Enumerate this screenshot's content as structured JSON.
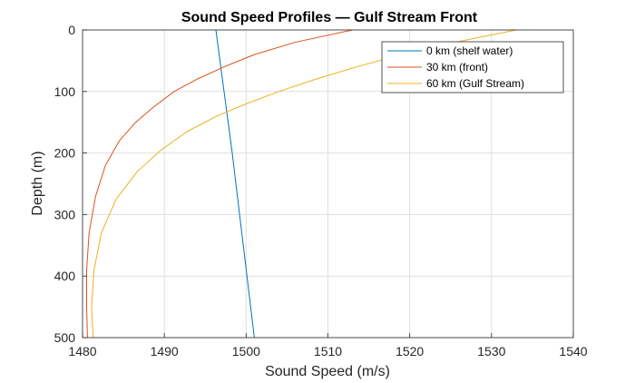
{
  "chart_data": {
    "type": "line",
    "title": "Sound Speed Profiles — Gulf Stream Front",
    "xlabel": "Sound Speed (m/s)",
    "ylabel": "Depth (m)",
    "xlim": [
      1480,
      1540
    ],
    "ylim": [
      0,
      500
    ],
    "y_reversed": true,
    "xticks": [
      1480,
      1490,
      1500,
      1510,
      1520,
      1530,
      1540
    ],
    "yticks": [
      0,
      100,
      200,
      300,
      400,
      500
    ],
    "grid": true,
    "legend_position": "top-right",
    "series": [
      {
        "name": "0 km (shelf water)",
        "color": "#0072BD",
        "x": [
          1496.3,
          1497.3,
          1498.3,
          1499.2,
          1500.1,
          1501.0
        ],
        "y": [
          0,
          100,
          200,
          300,
          400,
          500
        ]
      },
      {
        "name": "30 km (front)",
        "color": "#D95319",
        "x": [
          1513.0,
          1506.0,
          1501.0,
          1497.3,
          1494.0,
          1491.2,
          1488.7,
          1486.5,
          1484.5,
          1482.8,
          1481.6,
          1480.8,
          1480.5,
          1480.5,
          1480.6
        ],
        "y": [
          0,
          20,
          40,
          60,
          80,
          100,
          125,
          150,
          180,
          220,
          270,
          330,
          390,
          450,
          500
        ]
      },
      {
        "name": "60 km (Gulf Stream)",
        "color": "#EDB120",
        "x": [
          1533.0,
          1525.5,
          1519.0,
          1513.5,
          1508.5,
          1504.0,
          1500.0,
          1496.4,
          1492.8,
          1489.6,
          1486.7,
          1484.1,
          1482.3,
          1481.4,
          1481.1,
          1481.3
        ],
        "y": [
          0,
          20,
          40,
          60,
          80,
          100,
          120,
          140,
          165,
          195,
          230,
          275,
          330,
          390,
          450,
          500
        ]
      }
    ]
  }
}
